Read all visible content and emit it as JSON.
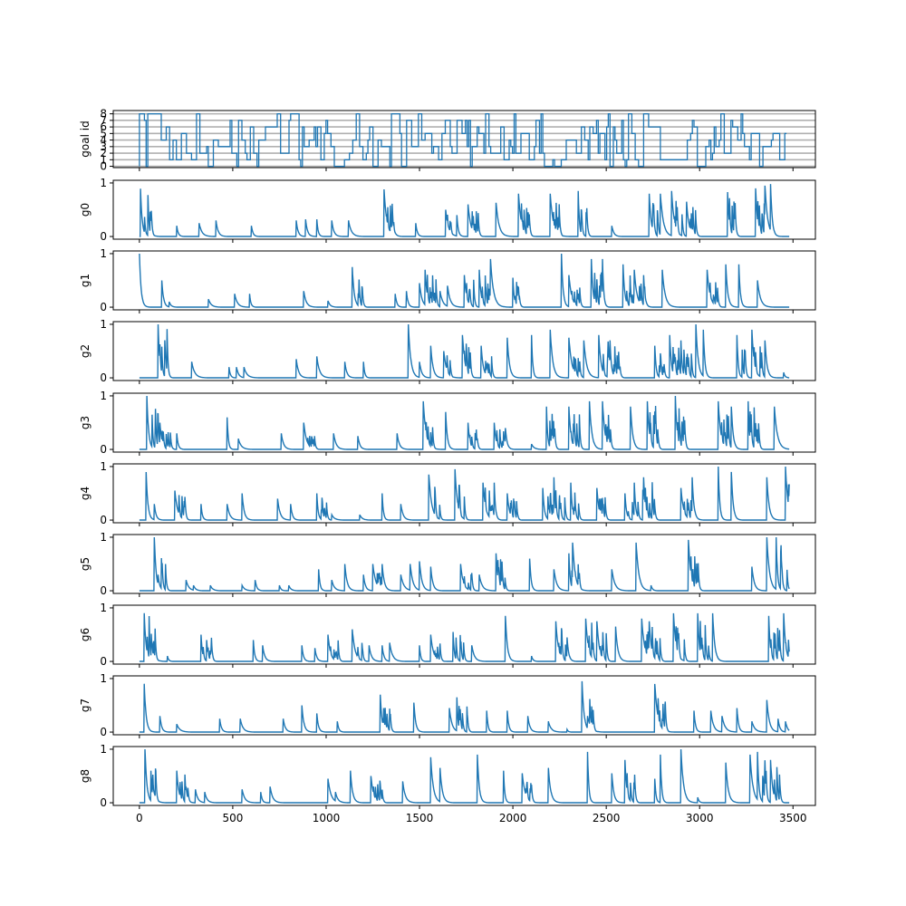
{
  "chart_data": {
    "type": "line",
    "layout": "stacked-subplots-shared-x",
    "color": "#1f77b4",
    "grid_color": "#b0b0b0",
    "x_range": [
      0,
      3480
    ],
    "x_ticks": [
      0,
      500,
      1000,
      1500,
      2000,
      2500,
      3000,
      3500
    ],
    "x_tick_labels": [
      "0",
      "500",
      "1000",
      "1500",
      "2000",
      "2500",
      "3000",
      "3500"
    ],
    "goal_panel": {
      "ylabel": "goal id",
      "ylim": [
        0,
        8
      ],
      "y_ticks": [
        0,
        1,
        2,
        3,
        4,
        5,
        6,
        7,
        8
      ],
      "y_tick_labels": [
        "0",
        "1",
        "2",
        "3",
        "4",
        "5",
        "6",
        "7",
        "8"
      ],
      "grid": "horizontal"
    },
    "panels": [
      {
        "ylabel": "g0",
        "peaks": [
          [
            5,
            1.0
          ],
          [
            30,
            0.18
          ],
          [
            60,
            0.1
          ],
          [
            200,
            0.2
          ],
          [
            320,
            0.25
          ],
          [
            410,
            0.3
          ],
          [
            600,
            0.2
          ],
          [
            840,
            0.3
          ],
          [
            890,
            0.32
          ],
          [
            950,
            0.32
          ],
          [
            1030,
            0.3
          ],
          [
            1120,
            0.3
          ],
          [
            1310,
            0.88
          ],
          [
            1360,
            0.2
          ],
          [
            1480,
            0.25
          ],
          [
            1640,
            0.5
          ],
          [
            1700,
            0.4
          ],
          [
            1760,
            0.6
          ],
          [
            1910,
            0.63
          ],
          [
            2030,
            0.8
          ],
          [
            2200,
            0.8
          ],
          [
            2230,
            0.2
          ],
          [
            2350,
            0.85
          ],
          [
            2530,
            0.2
          ],
          [
            2730,
            0.8
          ],
          [
            2790,
            0.8
          ],
          [
            2850,
            0.85
          ],
          [
            2930,
            0.65
          ],
          [
            3150,
            0.83
          ],
          [
            3300,
            0.9
          ],
          [
            3350,
            0.95
          ],
          [
            3380,
            0.98
          ]
        ],
        "y_ticks": [
          0,
          1
        ]
      },
      {
        "ylabel": "g1",
        "peaks": [
          [
            0,
            1.0
          ],
          [
            120,
            0.5
          ],
          [
            160,
            0.1
          ],
          [
            370,
            0.15
          ],
          [
            510,
            0.25
          ],
          [
            590,
            0.25
          ],
          [
            880,
            0.3
          ],
          [
            1010,
            0.12
          ],
          [
            1140,
            0.75
          ],
          [
            1370,
            0.25
          ],
          [
            1430,
            0.3
          ],
          [
            1500,
            0.45
          ],
          [
            1530,
            0.7
          ],
          [
            1610,
            0.3
          ],
          [
            1650,
            0.4
          ],
          [
            1740,
            0.6
          ],
          [
            1820,
            0.7
          ],
          [
            1880,
            0.9
          ],
          [
            2000,
            0.55
          ],
          [
            2260,
            1.0
          ],
          [
            2300,
            0.6
          ],
          [
            2420,
            0.9
          ],
          [
            2480,
            0.9
          ],
          [
            2590,
            0.8
          ],
          [
            2650,
            0.7
          ],
          [
            2700,
            0.6
          ],
          [
            2800,
            0.7
          ],
          [
            3040,
            0.7
          ],
          [
            3140,
            0.8
          ],
          [
            3210,
            0.8
          ],
          [
            3310,
            0.5
          ]
        ],
        "y_ticks": [
          0,
          1
        ]
      },
      {
        "ylabel": "g2",
        "peaks": [
          [
            100,
            1.0
          ],
          [
            280,
            0.3
          ],
          [
            480,
            0.2
          ],
          [
            520,
            0.2
          ],
          [
            560,
            0.2
          ],
          [
            840,
            0.35
          ],
          [
            950,
            0.4
          ],
          [
            1100,
            0.3
          ],
          [
            1200,
            0.3
          ],
          [
            1440,
            1.0
          ],
          [
            1500,
            0.3
          ],
          [
            1560,
            0.6
          ],
          [
            1630,
            0.5
          ],
          [
            1730,
            0.8
          ],
          [
            1830,
            0.6
          ],
          [
            1970,
            0.75
          ],
          [
            2100,
            0.8
          ],
          [
            2200,
            0.9
          ],
          [
            2300,
            0.75
          ],
          [
            2380,
            0.7
          ],
          [
            2460,
            0.8
          ],
          [
            2520,
            0.7
          ],
          [
            2760,
            0.6
          ],
          [
            2840,
            0.8
          ],
          [
            2900,
            0.7
          ],
          [
            2980,
            1.0
          ],
          [
            3020,
            0.9
          ],
          [
            3200,
            0.8
          ],
          [
            3280,
            0.9
          ],
          [
            3350,
            0.7
          ],
          [
            3450,
            0.1
          ]
        ],
        "y_ticks": [
          0,
          1
        ]
      },
      {
        "ylabel": "g3",
        "peaks": [
          [
            40,
            1.0
          ],
          [
            110,
            0.5
          ],
          [
            200,
            0.3
          ],
          [
            470,
            0.6
          ],
          [
            530,
            0.2
          ],
          [
            760,
            0.3
          ],
          [
            880,
            0.5
          ],
          [
            1040,
            0.3
          ],
          [
            1170,
            0.25
          ],
          [
            1380,
            0.3
          ],
          [
            1520,
            0.9
          ],
          [
            1640,
            0.7
          ],
          [
            1760,
            0.5
          ],
          [
            1900,
            0.5
          ],
          [
            1960,
            0.4
          ],
          [
            2100,
            0.1
          ],
          [
            2180,
            0.8
          ],
          [
            2300,
            0.8
          ],
          [
            2410,
            0.9
          ],
          [
            2480,
            0.9
          ],
          [
            2630,
            0.8
          ],
          [
            2720,
            0.9
          ],
          [
            2870,
            1.0
          ],
          [
            3100,
            0.9
          ],
          [
            3170,
            0.8
          ],
          [
            3260,
            0.9
          ],
          [
            3400,
            0.8
          ]
        ],
        "y_ticks": [
          0,
          1
        ]
      },
      {
        "ylabel": "g4",
        "peaks": [
          [
            35,
            1.0
          ],
          [
            80,
            0.3
          ],
          [
            190,
            0.55
          ],
          [
            330,
            0.3
          ],
          [
            470,
            0.3
          ],
          [
            550,
            0.5
          ],
          [
            740,
            0.4
          ],
          [
            810,
            0.3
          ],
          [
            950,
            0.5
          ],
          [
            1030,
            0.1
          ],
          [
            1180,
            0.1
          ],
          [
            1300,
            0.5
          ],
          [
            1400,
            0.3
          ],
          [
            1550,
            0.85
          ],
          [
            1690,
            0.95
          ],
          [
            1840,
            0.7
          ],
          [
            1900,
            0.7
          ],
          [
            1970,
            0.5
          ],
          [
            2160,
            0.6
          ],
          [
            2220,
            0.8
          ],
          [
            2310,
            0.7
          ],
          [
            2450,
            0.6
          ],
          [
            2600,
            0.5
          ],
          [
            2650,
            0.7
          ],
          [
            2700,
            0.8
          ],
          [
            2900,
            0.6
          ],
          [
            2960,
            0.8
          ],
          [
            3100,
            1.0
          ],
          [
            3170,
            0.9
          ],
          [
            3360,
            0.8
          ],
          [
            3460,
            1.0
          ]
        ],
        "y_ticks": [
          0,
          1
        ]
      },
      {
        "ylabel": "g5",
        "peaks": [
          [
            80,
            1.0
          ],
          [
            100,
            0.3
          ],
          [
            250,
            0.2
          ],
          [
            290,
            0.1
          ],
          [
            380,
            0.1
          ],
          [
            550,
            0.1
          ],
          [
            620,
            0.2
          ],
          [
            750,
            0.1
          ],
          [
            800,
            0.1
          ],
          [
            960,
            0.4
          ],
          [
            1030,
            0.2
          ],
          [
            1100,
            0.5
          ],
          [
            1200,
            0.3
          ],
          [
            1250,
            0.5
          ],
          [
            1300,
            0.5
          ],
          [
            1400,
            0.3
          ],
          [
            1450,
            0.5
          ],
          [
            1500,
            0.55
          ],
          [
            1560,
            0.45
          ],
          [
            1720,
            0.5
          ],
          [
            1820,
            0.3
          ],
          [
            1910,
            0.7
          ],
          [
            2090,
            0.6
          ],
          [
            2220,
            0.4
          ],
          [
            2300,
            0.7
          ],
          [
            2320,
            0.9
          ],
          [
            2530,
            0.4
          ],
          [
            2660,
            0.9
          ],
          [
            2740,
            0.1
          ],
          [
            2940,
            0.95
          ],
          [
            3280,
            0.45
          ],
          [
            3360,
            1.0
          ],
          [
            3410,
            1.0
          ]
        ],
        "y_ticks": [
          0,
          1
        ]
      },
      {
        "ylabel": "g6",
        "peaks": [
          [
            25,
            1.0
          ],
          [
            70,
            0.2
          ],
          [
            150,
            0.1
          ],
          [
            330,
            0.5
          ],
          [
            360,
            0.4
          ],
          [
            610,
            0.4
          ],
          [
            660,
            0.3
          ],
          [
            870,
            0.3
          ],
          [
            940,
            0.25
          ],
          [
            1010,
            0.5
          ],
          [
            1140,
            0.6
          ],
          [
            1230,
            0.3
          ],
          [
            1300,
            0.3
          ],
          [
            1340,
            0.35
          ],
          [
            1500,
            0.3
          ],
          [
            1560,
            0.5
          ],
          [
            1680,
            0.55
          ],
          [
            1780,
            0.3
          ],
          [
            1960,
            0.85
          ],
          [
            2100,
            0.1
          ],
          [
            2230,
            0.75
          ],
          [
            2290,
            0.45
          ],
          [
            2390,
            0.8
          ],
          [
            2450,
            0.75
          ],
          [
            2550,
            0.65
          ],
          [
            2690,
            0.8
          ],
          [
            2730,
            0.75
          ],
          [
            2860,
            0.9
          ],
          [
            2990,
            0.9
          ],
          [
            3070,
            0.9
          ],
          [
            3370,
            0.85
          ],
          [
            3450,
            0.9
          ]
        ],
        "y_ticks": [
          0,
          1
        ]
      },
      {
        "ylabel": "g7",
        "peaks": [
          [
            25,
            1.0
          ],
          [
            110,
            0.3
          ],
          [
            200,
            0.15
          ],
          [
            430,
            0.25
          ],
          [
            540,
            0.25
          ],
          [
            770,
            0.25
          ],
          [
            870,
            0.5
          ],
          [
            950,
            0.35
          ],
          [
            1060,
            0.2
          ],
          [
            1290,
            0.7
          ],
          [
            1470,
            0.55
          ],
          [
            1660,
            0.45
          ],
          [
            1700,
            0.65
          ],
          [
            1860,
            0.4
          ],
          [
            1970,
            0.4
          ],
          [
            2080,
            0.3
          ],
          [
            2190,
            0.2
          ],
          [
            2290,
            0.05
          ],
          [
            2370,
            0.95
          ],
          [
            2400,
            0.3
          ],
          [
            2760,
            0.9
          ],
          [
            2800,
            0.25
          ],
          [
            2970,
            0.4
          ],
          [
            3060,
            0.4
          ],
          [
            3120,
            0.3
          ],
          [
            3200,
            0.45
          ],
          [
            3280,
            0.2
          ],
          [
            3360,
            0.6
          ],
          [
            3420,
            0.25
          ],
          [
            3460,
            0.2
          ]
        ],
        "y_ticks": [
          0,
          1
        ]
      },
      {
        "ylabel": "g8",
        "peaks": [
          [
            30,
            1.0
          ],
          [
            70,
            0.4
          ],
          [
            200,
            0.6
          ],
          [
            250,
            0.3
          ],
          [
            300,
            0.25
          ],
          [
            350,
            0.2
          ],
          [
            550,
            0.25
          ],
          [
            650,
            0.2
          ],
          [
            700,
            0.3
          ],
          [
            1010,
            0.45
          ],
          [
            1050,
            0.2
          ],
          [
            1130,
            0.6
          ],
          [
            1240,
            0.5
          ],
          [
            1410,
            0.4
          ],
          [
            1560,
            0.85
          ],
          [
            1610,
            0.65
          ],
          [
            1810,
            0.9
          ],
          [
            1950,
            0.6
          ],
          [
            2050,
            0.55
          ],
          [
            2190,
            0.65
          ],
          [
            2400,
            0.95
          ],
          [
            2530,
            0.55
          ],
          [
            2600,
            0.8
          ],
          [
            2760,
            0.45
          ],
          [
            2790,
            0.9
          ],
          [
            2900,
            1.0
          ],
          [
            2990,
            0.1
          ],
          [
            3140,
            0.75
          ],
          [
            3270,
            0.9
          ],
          [
            3310,
            0.95
          ],
          [
            3380,
            0.8
          ]
        ],
        "y_ticks": [
          0,
          1
        ]
      }
    ]
  }
}
